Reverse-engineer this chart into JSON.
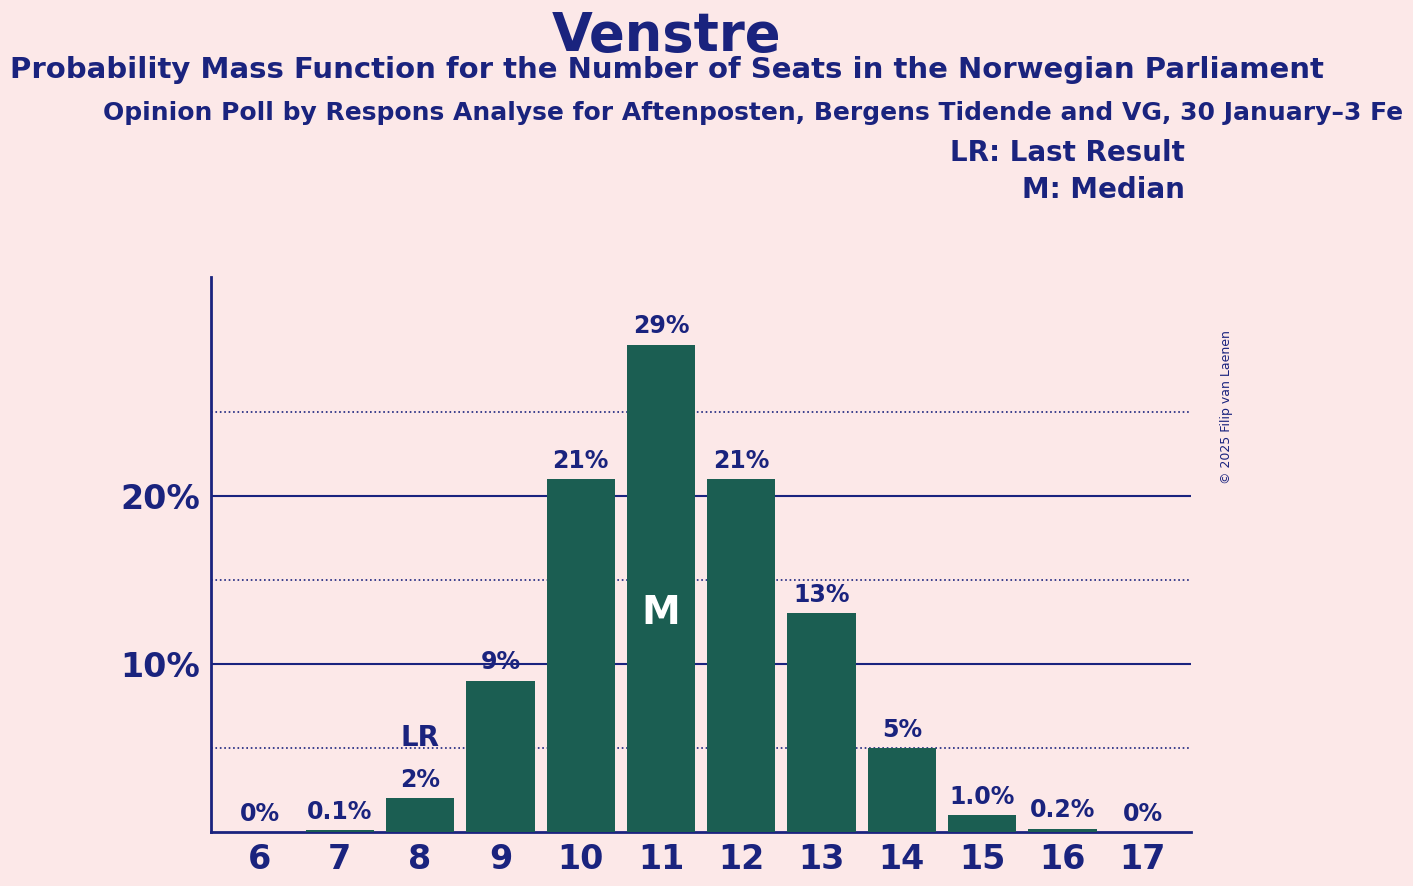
{
  "title": "Venstre",
  "subtitle": "Probability Mass Function for the Number of Seats in the Norwegian Parliament",
  "source": "Opinion Poll by Respons Analyse for Aftenposten, Bergens Tidende and VG, 30 January–3 Fe",
  "copyright": "© 2025 Filip van Laenen",
  "categories": [
    6,
    7,
    8,
    9,
    10,
    11,
    12,
    13,
    14,
    15,
    16,
    17
  ],
  "values": [
    0.0,
    0.1,
    2.0,
    9.0,
    21.0,
    29.0,
    21.0,
    13.0,
    5.0,
    1.0,
    0.2,
    0.0
  ],
  "bar_color": "#1b5e52",
  "background_color": "#fce8e8",
  "text_color": "#1a237e",
  "bar_labels": [
    "0%",
    "0.1%",
    "2%",
    "9%",
    "21%",
    "29%",
    "21%",
    "13%",
    "5%",
    "1.0%",
    "0.2%",
    "0%"
  ],
  "lr_index": 2,
  "median_index": 5,
  "lr_label": "LR",
  "median_label": "M",
  "legend_lr": "LR: Last Result",
  "legend_m": "M: Median",
  "yticks": [
    10,
    20
  ],
  "ygrid_solid": [
    10,
    20
  ],
  "ygrid_dotted": [
    5,
    15,
    25
  ],
  "ylim": [
    0,
    33
  ],
  "title_fontsize": 38,
  "subtitle_fontsize": 21,
  "source_fontsize": 18,
  "bar_label_fontsize": 17,
  "tick_fontsize": 24,
  "legend_fontsize": 20
}
